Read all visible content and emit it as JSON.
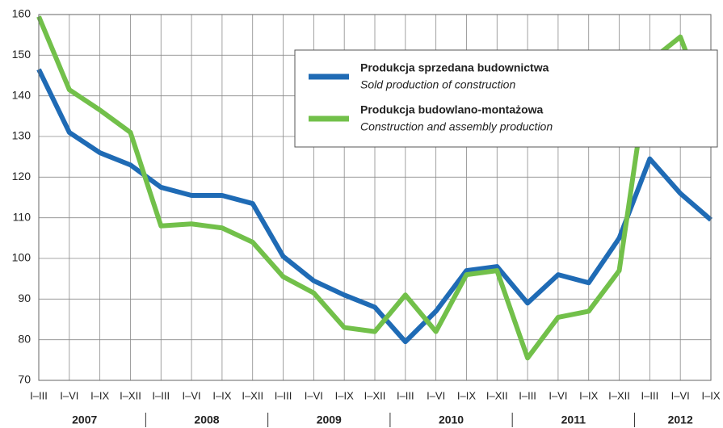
{
  "chart_data": {
    "type": "line",
    "categories": [
      "I–III",
      "I–VI",
      "I–IX",
      "I–XII",
      "I–III",
      "I–VI",
      "I–IX",
      "I–XII",
      "I–III",
      "I–VI",
      "I–IX",
      "I–XII",
      "I–III",
      "I–VI",
      "I–IX",
      "I–XII",
      "I–III",
      "I–VI",
      "I–IX",
      "I–XII",
      "I–III",
      "I–VI",
      "I–IX"
    ],
    "years": [
      "2007",
      "2008",
      "2009",
      "2010",
      "2011",
      "2012"
    ],
    "series": [
      {
        "name": "Produkcja sprzedana budownictwa",
        "name_en": "Sold production of construction",
        "color": "#1f6bb5",
        "values": [
          146.5,
          131,
          126,
          123,
          117.5,
          115.5,
          115.5,
          113.5,
          100.5,
          94.5,
          91,
          88,
          79.5,
          87,
          97,
          98,
          89,
          96,
          94,
          105,
          124.5,
          116,
          109.5
        ]
      },
      {
        "name": "Produkcja budowlano-montażowa",
        "name_en": "Construction and assembly production",
        "color": "#72c04a",
        "values": [
          159.5,
          141.5,
          136.5,
          131,
          108,
          108.5,
          107.5,
          104,
          95.5,
          91.5,
          83,
          82,
          91,
          82,
          96,
          97,
          75.5,
          85.5,
          87,
          97,
          148.5,
          154.5,
          134.5
        ]
      }
    ],
    "ylim": [
      70,
      160
    ],
    "yticks": [
      70,
      80,
      90,
      100,
      110,
      120,
      130,
      140,
      150,
      160
    ],
    "grid": true
  }
}
